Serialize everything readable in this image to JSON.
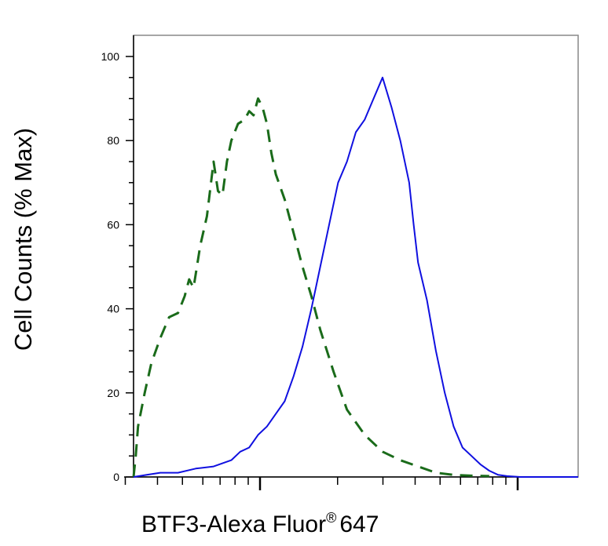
{
  "chart_data": {
    "type": "line",
    "title": "",
    "xlabel": "BTF3-Alexa Fluor",
    "xlabel_mark": "®",
    "xlabel_suffix": "647",
    "ylabel": "Cell Counts (% Max)",
    "x_scale": "log",
    "xlim": [
      0,
      1
    ],
    "ylim": [
      0,
      103
    ],
    "y_ticks": [
      0,
      20,
      40,
      60,
      80,
      100
    ],
    "y_tick_labels": [
      "0",
      "20",
      "40",
      "60",
      "80",
      "100"
    ],
    "grid": false,
    "legend": "none",
    "series": [
      {
        "style": "dashed",
        "color": "#1a6b1a",
        "x": [
          0.0,
          0.005,
          0.01,
          0.025,
          0.04,
          0.06,
          0.08,
          0.1,
          0.115,
          0.125,
          0.135,
          0.15,
          0.165,
          0.18,
          0.19,
          0.2,
          0.21,
          0.22,
          0.235,
          0.25,
          0.26,
          0.27,
          0.28,
          0.29,
          0.3,
          0.31,
          0.32,
          0.34,
          0.36,
          0.38,
          0.4,
          0.42,
          0.45,
          0.48,
          0.52,
          0.56,
          0.6,
          0.64,
          0.68,
          0.72,
          0.76,
          0.8
        ],
        "y": [
          0,
          5,
          12,
          20,
          27,
          33,
          38,
          39,
          43,
          47,
          45,
          55,
          62,
          75,
          68,
          67,
          75,
          80,
          84,
          85,
          87,
          86,
          90,
          88,
          84,
          77,
          72,
          66,
          58,
          50,
          43,
          35,
          25,
          16,
          10,
          6,
          4,
          2.5,
          1,
          0.5,
          0.3,
          0.2
        ]
      },
      {
        "style": "solid",
        "color": "#1010e0",
        "x": [
          0.0,
          0.03,
          0.06,
          0.1,
          0.14,
          0.18,
          0.22,
          0.24,
          0.26,
          0.28,
          0.3,
          0.32,
          0.34,
          0.36,
          0.38,
          0.4,
          0.42,
          0.44,
          0.46,
          0.48,
          0.5,
          0.52,
          0.54,
          0.56,
          0.58,
          0.6,
          0.62,
          0.63,
          0.64,
          0.66,
          0.68,
          0.7,
          0.72,
          0.74,
          0.76,
          0.78,
          0.8,
          0.82,
          0.84,
          0.87,
          0.9,
          0.94,
          0.97,
          1.0
        ],
        "y": [
          0,
          0.5,
          1,
          1,
          2,
          2.5,
          4,
          6,
          7,
          10,
          12,
          15,
          18,
          24,
          31,
          40,
          50,
          60,
          70,
          75,
          82,
          85,
          90,
          95,
          88,
          80,
          70,
          60,
          51,
          42,
          30,
          20,
          12,
          7,
          5,
          3,
          1.5,
          0.5,
          0.2,
          0,
          0,
          0,
          0,
          0
        ]
      }
    ]
  }
}
